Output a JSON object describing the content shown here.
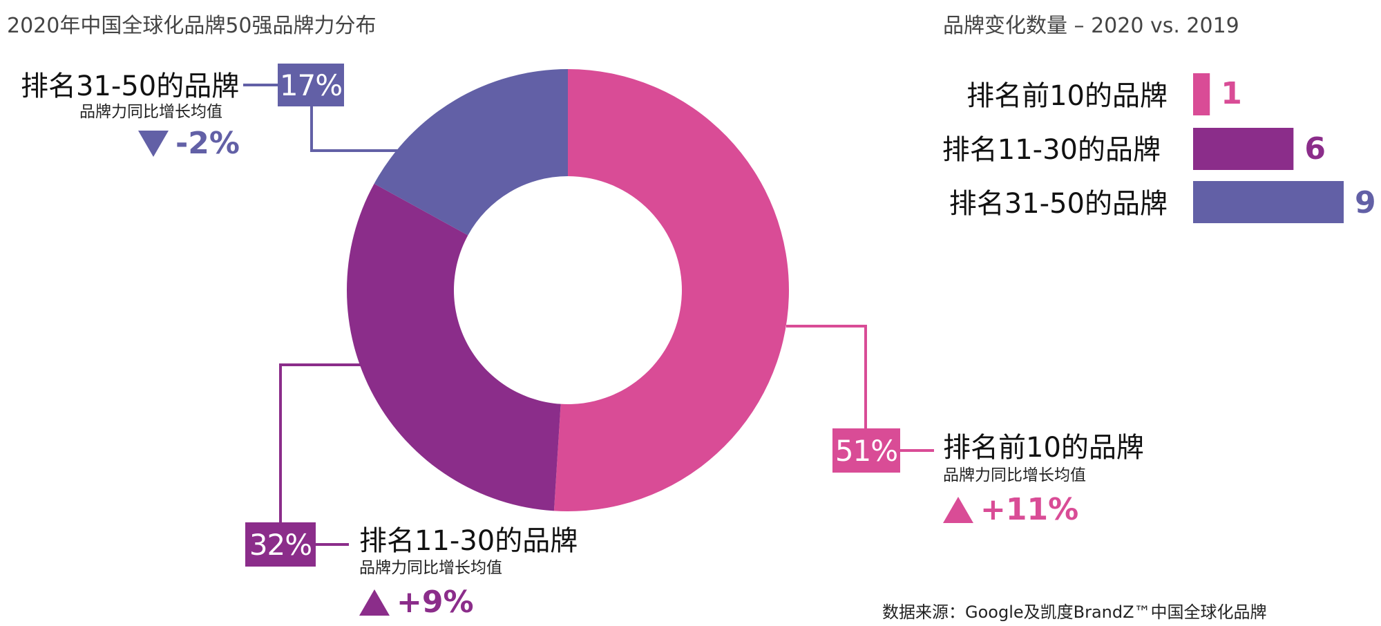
{
  "chart_data": [
    {
      "type": "pie",
      "title": "2020年中国全球化品牌50强品牌力分布",
      "segments": [
        {
          "label": "排名前10的品牌",
          "sublabel": "品牌力同比增长均值",
          "value": 51,
          "value_label": "51%",
          "change": "+11%",
          "direction": "up",
          "color": "#D94C96"
        },
        {
          "label": "排名11-30的品牌",
          "sublabel": "品牌力同比增长均值",
          "value": 32,
          "value_label": "32%",
          "change": "+9%",
          "direction": "up",
          "color": "#8B2D8A"
        },
        {
          "label": "排名31-50的品牌",
          "sublabel": "品牌力同比增长均值",
          "value": 17,
          "value_label": "17%",
          "change": "-2%",
          "direction": "down",
          "color": "#6260A6"
        }
      ]
    },
    {
      "type": "bar",
      "orientation": "horizontal",
      "title": "品牌变化数量 – 2020 vs. 2019",
      "categories": [
        "排名前10的品牌",
        "排名11-30的品牌",
        "排名31-50的品牌"
      ],
      "values": [
        1,
        6,
        9
      ],
      "colors": [
        "#D94C96",
        "#8B2D8A",
        "#6260A6"
      ]
    }
  ],
  "source": "数据来源：Google及凯度BrandZ™中国全球化品牌"
}
